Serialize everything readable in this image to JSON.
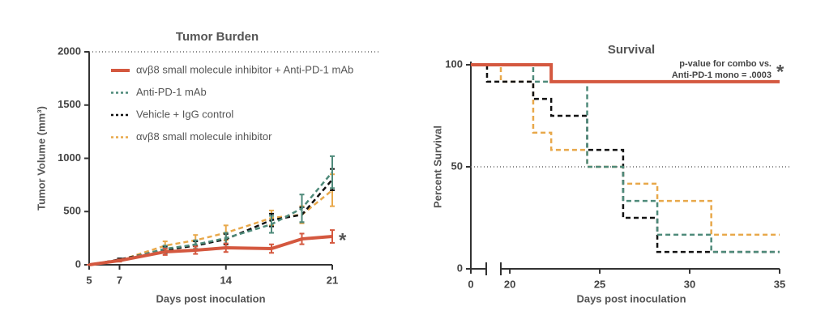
{
  "chart_data": [
    {
      "type": "line",
      "title": "Tumor Burden",
      "x_label": "Days post inoculation",
      "y_label": "Tumor Volume (mm³)",
      "x": [
        5,
        7,
        10,
        12,
        14,
        17,
        19,
        21
      ],
      "xlim": [
        5,
        21
      ],
      "xticks": [
        5,
        7,
        14,
        21
      ],
      "ylim": [
        0,
        2000
      ],
      "yticks": [
        0,
        500,
        1000,
        1500,
        2000
      ],
      "hlines": [
        2000
      ],
      "legend": "top-left",
      "annotation": "*",
      "series": [
        {
          "name": "αvβ8 small molecule inhibitor + Anti-PD-1 mAb",
          "color": "#d4583f",
          "style": "solid",
          "values": [
            0,
            40,
            122,
            137,
            160,
            152,
            243,
            266
          ],
          "errors": [
            0,
            10,
            30,
            35,
            40,
            40,
            50,
            60
          ]
        },
        {
          "name": "Anti-PD-1 mAb",
          "color": "#4e8a7a",
          "style": "dashed",
          "values": [
            0,
            40,
            150,
            190,
            250,
            380,
            530,
            870
          ],
          "errors": [
            0,
            10,
            30,
            40,
            50,
            80,
            130,
            150
          ]
        },
        {
          "name": "Vehicle + IgG control",
          "color": "#111111",
          "style": "dashed",
          "values": [
            0,
            50,
            140,
            180,
            240,
            420,
            470,
            800
          ],
          "errors": [
            0,
            10,
            30,
            40,
            50,
            60,
            70,
            100
          ]
        },
        {
          "name": "αvβ8 small molecule inhibitor",
          "color": "#e8a84a",
          "style": "dashed",
          "values": [
            0,
            40,
            180,
            230,
            300,
            440,
            470,
            700
          ],
          "errors": [
            0,
            10,
            40,
            50,
            70,
            70,
            80,
            150
          ]
        }
      ]
    },
    {
      "type": "step",
      "title": "Survival",
      "x_label": "Days post inoculation",
      "y_label": "Percent Survival",
      "xlim": [
        0,
        35
      ],
      "x_break": [
        1,
        19.5
      ],
      "xticks": [
        0,
        20,
        25,
        30,
        35
      ],
      "ylim": [
        0,
        100
      ],
      "yticks": [
        0,
        50,
        100
      ],
      "hlines": [
        50
      ],
      "annotation": [
        "p-value for combo vs.",
        "Anti-PD-1 mono = .0003",
        "*"
      ],
      "series": [
        {
          "color": "#d4583f",
          "style": "solid",
          "x": [
            0,
            22.3,
            35
          ],
          "values": [
            100,
            91.7,
            91.7
          ]
        },
        {
          "color": "#4e8a7a",
          "style": "dashed",
          "x": [
            0,
            21.3,
            24.3,
            26.3,
            28.2,
            31.2,
            35
          ],
          "values": [
            100,
            91.7,
            50,
            33.3,
            16.7,
            8.3,
            8.3
          ]
        },
        {
          "color": "#111111",
          "style": "dashed",
          "x": [
            0,
            0.9,
            21.3,
            22.3,
            24.3,
            26.3,
            28.2,
            35
          ],
          "values": [
            100,
            91.7,
            83.3,
            75,
            58.3,
            25,
            8.3,
            8.3
          ]
        },
        {
          "color": "#e8a84a",
          "style": "dashed",
          "x": [
            0,
            19.5,
            21.3,
            22.3,
            24.3,
            26.3,
            28.2,
            31.2,
            35
          ],
          "values": [
            100,
            91.7,
            66.7,
            58.3,
            50,
            41.7,
            33.3,
            16.7,
            16.7
          ]
        }
      ]
    }
  ]
}
